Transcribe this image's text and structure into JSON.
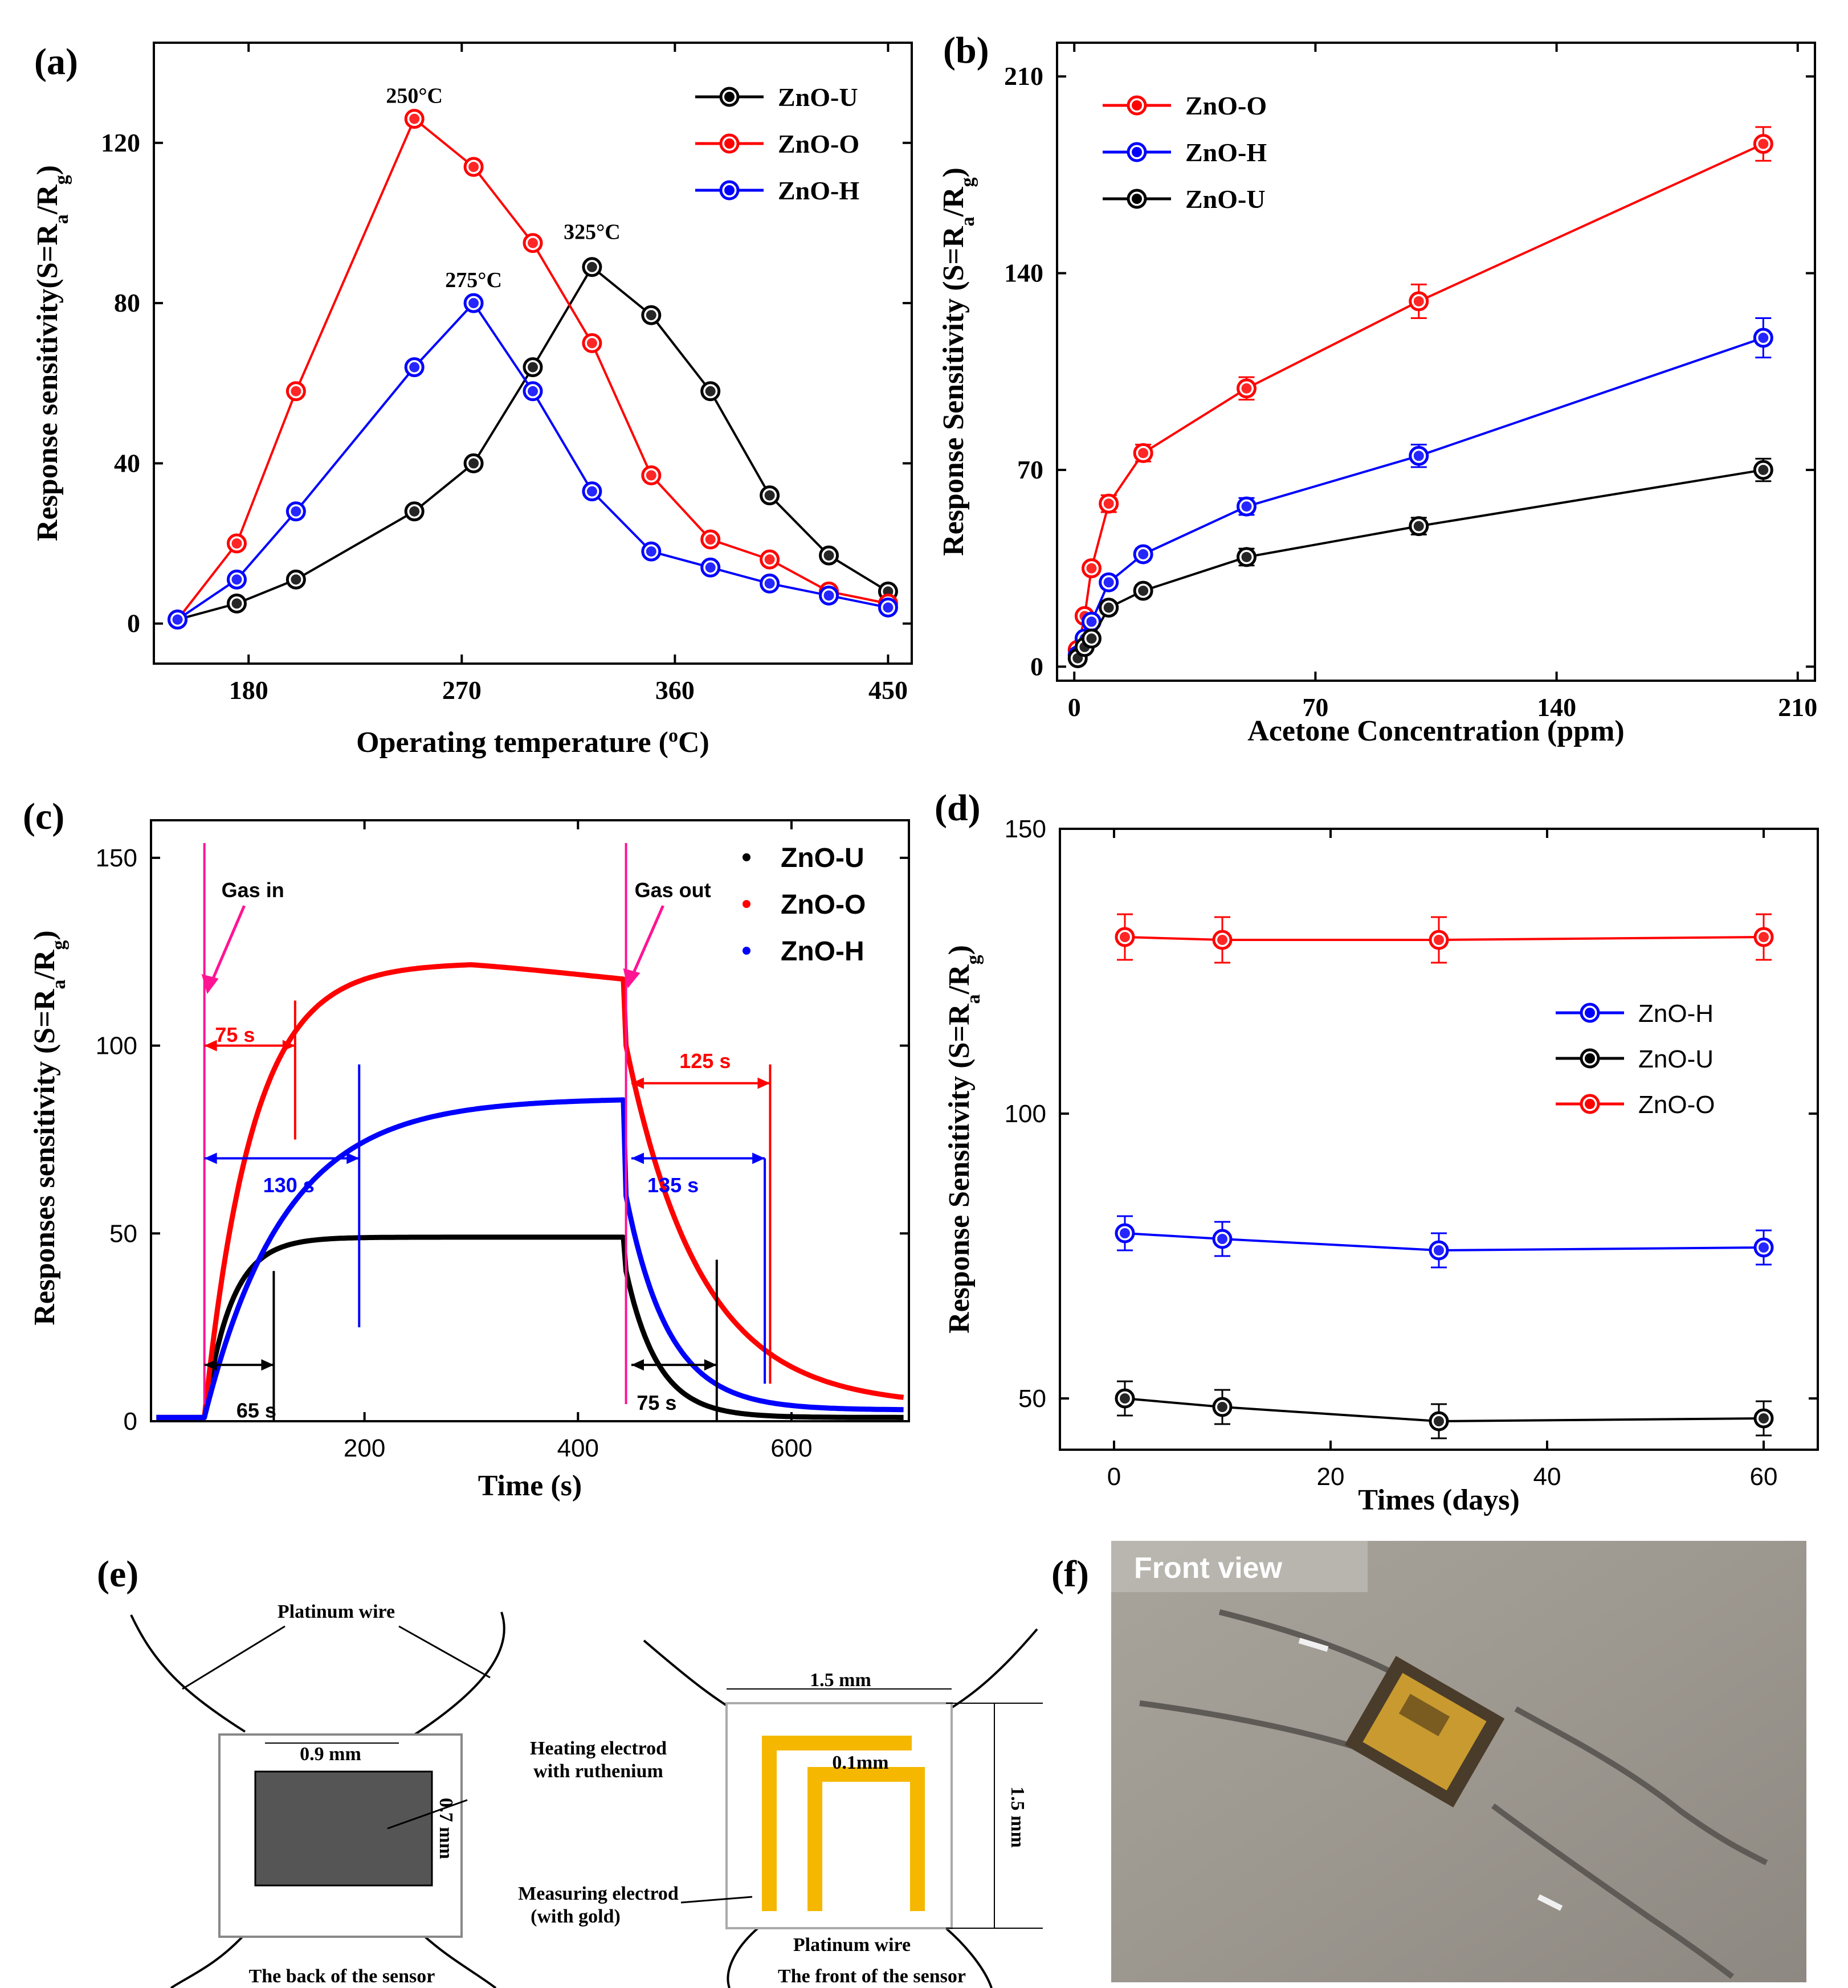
{
  "colors": {
    "U": "#000000",
    "O": "#ff0000",
    "H": "#0000ff",
    "gas": "#ff1493"
  },
  "chart_data": [
    {
      "panel": "(a)",
      "type": "line",
      "xlabel": "Operating temperature (°C)",
      "ylabel": "Response sensitivity(S=Ra/Rg)",
      "xlim": [
        140,
        460
      ],
      "ylim": [
        -10,
        145
      ],
      "xticks": [
        180,
        270,
        360,
        450
      ],
      "yticks": [
        0,
        40,
        80,
        120
      ],
      "legend_position": "top-right",
      "series": [
        {
          "name": "ZnO-U",
          "color_key": "U",
          "x": [
            150,
            175,
            200,
            250,
            275,
            300,
            325,
            350,
            375,
            400,
            425,
            450
          ],
          "y": [
            1,
            5,
            11,
            28,
            40,
            64,
            89,
            77,
            58,
            32,
            17,
            8
          ]
        },
        {
          "name": "ZnO-O",
          "color_key": "O",
          "x": [
            150,
            175,
            200,
            250,
            275,
            300,
            325,
            350,
            375,
            400,
            425,
            450
          ],
          "y": [
            1,
            20,
            58,
            126,
            114,
            95,
            70,
            37,
            21,
            16,
            8,
            5
          ]
        },
        {
          "name": "ZnO-H",
          "color_key": "H",
          "x": [
            150,
            175,
            200,
            250,
            275,
            300,
            325,
            350,
            375,
            400,
            425,
            450
          ],
          "y": [
            1,
            11,
            28,
            64,
            80,
            58,
            33,
            18,
            14,
            10,
            7,
            4
          ]
        }
      ],
      "annotations": [
        {
          "text": "250°C",
          "x": 250,
          "y": 130
        },
        {
          "text": "275°C",
          "x": 275,
          "y": 84
        },
        {
          "text": "325°C",
          "x": 325,
          "y": 96
        }
      ]
    },
    {
      "panel": "(b)",
      "type": "line",
      "xlabel": "Acetone Concentration (ppm)",
      "ylabel": "Response Sensitivity (S=Ra/Rg)",
      "xlim": [
        -5,
        215
      ],
      "ylim": [
        -5,
        222
      ],
      "xticks": [
        0,
        70,
        140,
        210
      ],
      "yticks": [
        0,
        70,
        140,
        210
      ],
      "legend_position": "top-left",
      "series": [
        {
          "name": "ZnO-O",
          "color_key": "O",
          "x": [
            1,
            3,
            5,
            10,
            20,
            50,
            100,
            200
          ],
          "y": [
            6,
            18,
            35,
            58,
            76,
            99,
            130,
            186
          ],
          "err": [
            0,
            0,
            0,
            3,
            3,
            4,
            6,
            6
          ]
        },
        {
          "name": "ZnO-H",
          "color_key": "H",
          "x": [
            1,
            3,
            5,
            10,
            20,
            50,
            100,
            200
          ],
          "y": [
            4,
            10,
            16,
            30,
            40,
            57,
            75,
            117
          ],
          "err": [
            0,
            0,
            0,
            2,
            2,
            3,
            4,
            7
          ]
        },
        {
          "name": "ZnO-U",
          "color_key": "U",
          "x": [
            1,
            3,
            5,
            10,
            20,
            50,
            100,
            200
          ],
          "y": [
            3,
            7,
            10,
            21,
            27,
            39,
            50,
            70
          ],
          "err": [
            0,
            0,
            0,
            2,
            2,
            3,
            3,
            4
          ]
        }
      ]
    },
    {
      "panel": "(c)",
      "type": "scatter",
      "xlabel": "Time (s)",
      "ylabel": "Responses sensitivity (S=Ra/Rg)",
      "xlim": [
        0,
        710
      ],
      "ylim": [
        0,
        160
      ],
      "xticks": [
        200,
        400,
        600
      ],
      "yticks": [
        0,
        50,
        100,
        150
      ],
      "legend_position": "top-right",
      "gas_in_time": 50,
      "gas_out_time": 445,
      "series": [
        {
          "name": "ZnO-U",
          "color_key": "U",
          "plateau": 49,
          "tau_rise": 25,
          "post_out": 40,
          "tau_fall": 30,
          "baseline": 1
        },
        {
          "name": "ZnO-O",
          "color_key": "O",
          "plateau": 122,
          "tau_rise": 45,
          "post_out": 100,
          "tau_fall": 70,
          "baseline": 4
        },
        {
          "name": "ZnO-H",
          "color_key": "H",
          "plateau": 86,
          "tau_rise": 75,
          "post_out": 60,
          "tau_fall": 40,
          "baseline": 3
        }
      ],
      "annotations": {
        "gas_in": "Gas in",
        "gas_out": "Gas out",
        "o_response": "75 s",
        "o_recovery": "125 s",
        "h_response": "130 s",
        "h_recovery": "135 s",
        "u_response": "65 s",
        "u_recovery": "75 s"
      }
    },
    {
      "panel": "(d)",
      "type": "line",
      "xlabel": "Times (days)",
      "ylabel": "Response Sensitivity (S=Ra/Rg)",
      "xlim": [
        -5,
        65
      ],
      "ylim": [
        41,
        150
      ],
      "xticks": [
        0,
        20,
        40,
        60
      ],
      "yticks": [
        50,
        100,
        150
      ],
      "legend_position": "center-right",
      "series": [
        {
          "name": "ZnO-H",
          "color_key": "H",
          "x": [
            1,
            10,
            30,
            60
          ],
          "y": [
            79,
            78,
            76,
            76.5
          ],
          "err": [
            3,
            3,
            3,
            3
          ]
        },
        {
          "name": "ZnO-U",
          "color_key": "U",
          "x": [
            1,
            10,
            30,
            60
          ],
          "y": [
            50,
            48.5,
            46,
            46.5
          ],
          "err": [
            3,
            3,
            3,
            3
          ]
        },
        {
          "name": "ZnO-O",
          "color_key": "O",
          "x": [
            1,
            10,
            30,
            60
          ],
          "y": [
            131,
            130.5,
            130.5,
            131
          ],
          "err": [
            4,
            4,
            4,
            4
          ]
        }
      ]
    }
  ],
  "diagram": {
    "label": "(e)",
    "back_title": "The back of the sensor",
    "front_title": "The front  of  the sensor",
    "platinum_wire": "Platinum wire",
    "platinum_wire_front": "Platinum wire",
    "heating_line1": "Heating electrod",
    "heating_line2": "with ruthenium",
    "measuring_line1": "Measuring  electrod",
    "measuring_line2": "(with gold)",
    "dim_09": "0.9 mm",
    "dim_07": "0.7 mm",
    "dim_15w": "1.5 mm",
    "dim_01": "0.1mm",
    "dim_15h": "1.5 mm"
  },
  "photo": {
    "label": "(f)",
    "caption": "Front view"
  }
}
